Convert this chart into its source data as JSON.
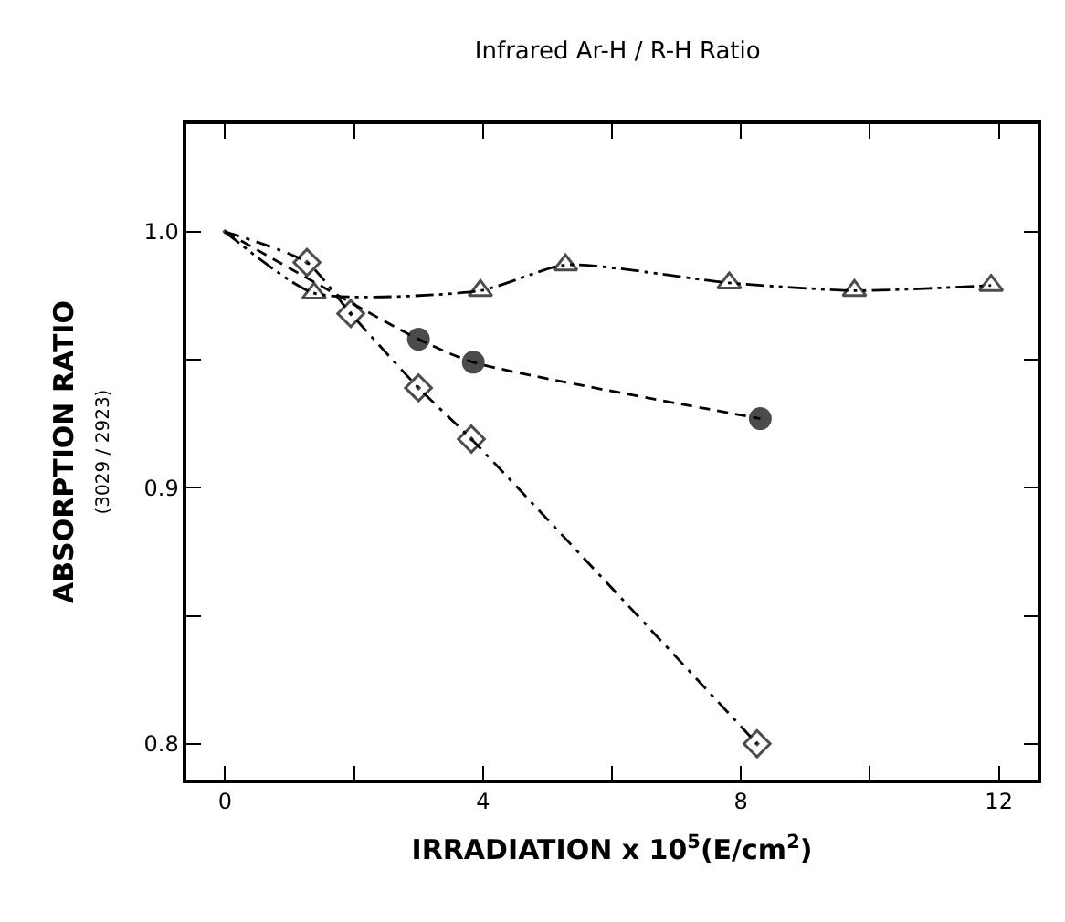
{
  "chart_data": {
    "type": "line",
    "title": "Infrared Ar-H / R-H Ratio",
    "xlabel": "IRRADIATION x 10$^{5}$(E/cm$^{2}$)",
    "ylabel": "ABSORPTION RATIO\n(3029 / 2923)",
    "series": [
      {
        "color": "#000000",
        "marker": "triangle",
        "line_style": "dashdotdot",
        "x": [
          0,
          1.38,
          3.96,
          5.28,
          7.82,
          9.76,
          11.88
        ],
        "values": [
          1.0,
          0.976,
          0.977,
          0.987,
          0.98,
          0.977,
          0.979
        ]
      },
      {
        "color": "#000000",
        "marker": "circle",
        "line_style": "dashed",
        "x": [
          0,
          3.0,
          3.85,
          8.3
        ],
        "values": [
          1.0,
          0.958,
          0.949,
          0.927
        ]
      },
      {
        "color": "#000000",
        "marker": "diamond",
        "line_style": "dashdot",
        "x": [
          0,
          1.27,
          1.95,
          3.0,
          3.82,
          8.25
        ],
        "values": [
          1.0,
          0.988,
          0.968,
          0.939,
          0.919,
          0.8
        ]
      }
    ],
    "xlim": [
      -0.6,
      12.6
    ],
    "ylim": [
      0.786,
      1.042
    ],
    "xticks": [
      0,
      {
        "value": 2,
        "label": null
      },
      4,
      {
        "value": 6,
        "label": null
      },
      8,
      {
        "value": 10,
        "label": null
      },
      12
    ],
    "yticks": [
      {
        "value": 0.8,
        "label": "0.8"
      },
      {
        "value": 0.85,
        "label": null
      },
      {
        "value": 0.9,
        "label": "0.9"
      },
      {
        "value": 0.95,
        "label": null
      },
      {
        "value": 1.0,
        "label": "1.0"
      }
    ]
  }
}
